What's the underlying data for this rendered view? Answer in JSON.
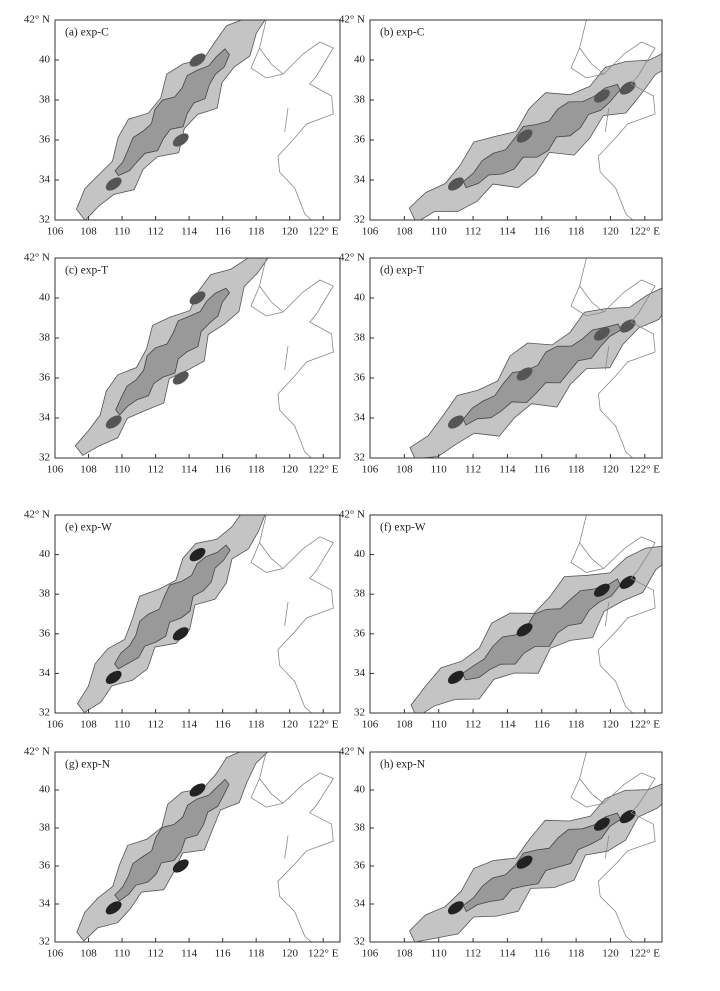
{
  "panels": [
    {
      "label": "(a) exp-C"
    },
    {
      "label": "(b) exp-C"
    },
    {
      "label": "(c) exp-T"
    },
    {
      "label": "(d) exp-T"
    },
    {
      "label": "(e) exp-W"
    },
    {
      "label": "(f) exp-W"
    },
    {
      "label": "(g) exp-N"
    },
    {
      "label": "(h) exp-N"
    }
  ],
  "xlim": [
    106,
    123
  ],
  "ylim": [
    32,
    42
  ],
  "xticks": [
    106,
    108,
    110,
    112,
    114,
    116,
    118,
    120,
    {
      "value": 122,
      "label": "122° E"
    }
  ],
  "yticks": [
    32,
    34,
    36,
    38,
    40,
    {
      "value": 42,
      "label": "42° N"
    }
  ]
}
